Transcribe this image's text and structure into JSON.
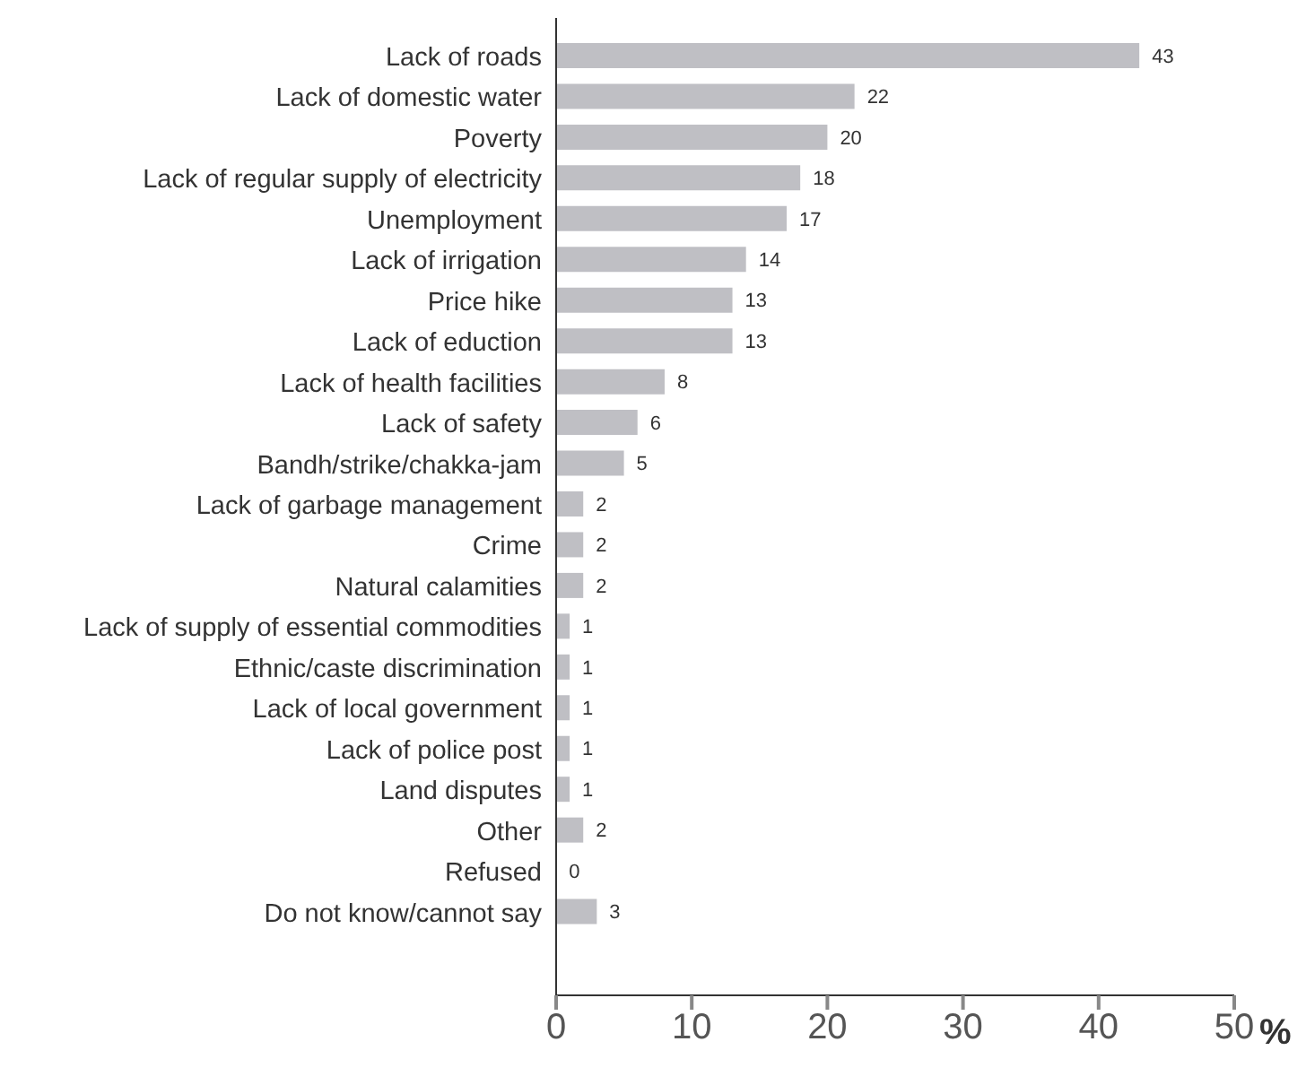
{
  "chart_data": {
    "type": "bar",
    "orientation": "horizontal",
    "xlabel": "%",
    "categories": [
      "Lack of roads",
      "Lack of domestic water",
      "Poverty",
      "Lack of regular supply of electricity",
      "Unemployment",
      "Lack of irrigation",
      "Price hike",
      "Lack of eduction",
      "Lack of health facilities",
      "Lack of safety",
      "Bandh/strike/chakka-jam",
      "Lack of garbage management",
      "Crime",
      "Natural calamities",
      "Lack of supply of essential commodities",
      "Ethnic/caste discrimination",
      "Lack of local government",
      "Lack of police post",
      "Land disputes",
      "Other",
      "Refused",
      "Do not know/cannot say"
    ],
    "values": [
      43,
      22,
      20,
      18,
      17,
      14,
      13,
      13,
      8,
      6,
      5,
      2,
      2,
      2,
      1,
      1,
      1,
      1,
      1,
      2,
      0,
      3
    ],
    "color": "#bfbfc4",
    "xlim": [
      0,
      50
    ],
    "xticks": [
      0,
      10,
      20,
      30,
      40,
      50
    ],
    "data_labels": true,
    "grid": false,
    "legend": false
  }
}
